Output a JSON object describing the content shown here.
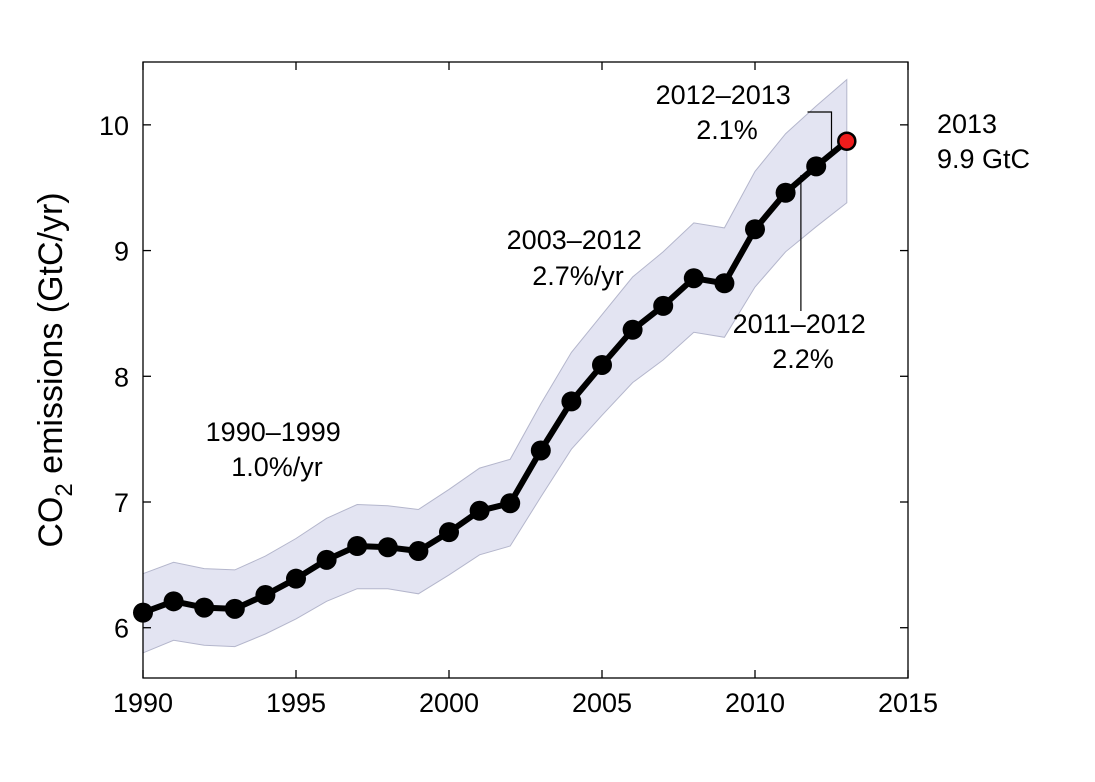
{
  "chart_data": {
    "type": "line",
    "title": "",
    "xlabel": "",
    "ylabel": {
      "pre": "CO",
      "sub": "2",
      "post": " emissions (GtC/yr)"
    },
    "xlim": [
      1990,
      2015
    ],
    "ylim": [
      5.6,
      10.5
    ],
    "xticks": [
      1990,
      1995,
      2000,
      2005,
      2010,
      2015
    ],
    "yticks": [
      6,
      7,
      8,
      9,
      10
    ],
    "grid": false,
    "series": [
      {
        "x": [
          1990,
          1991,
          1992,
          1993,
          1994,
          1995,
          1996,
          1997,
          1998,
          1999,
          2000,
          2001,
          2002,
          2003,
          2004,
          2005,
          2006,
          2007,
          2008,
          2009,
          2010,
          2011,
          2012
        ],
        "y": [
          6.12,
          6.21,
          6.16,
          6.15,
          6.26,
          6.39,
          6.54,
          6.65,
          6.64,
          6.61,
          6.76,
          6.93,
          6.99,
          7.41,
          7.8,
          8.09,
          8.37,
          8.56,
          8.78,
          8.74,
          9.17,
          9.46,
          9.67
        ],
        "lower": [
          5.8,
          5.9,
          5.86,
          5.85,
          5.95,
          6.07,
          6.21,
          6.31,
          6.31,
          6.27,
          6.42,
          6.58,
          6.65,
          7.04,
          7.42,
          7.69,
          7.95,
          8.13,
          8.35,
          8.31,
          8.71,
          8.99,
          9.19
        ],
        "upper": [
          6.43,
          6.52,
          6.47,
          6.46,
          6.57,
          6.71,
          6.87,
          6.98,
          6.97,
          6.94,
          7.1,
          7.27,
          7.34,
          7.78,
          8.19,
          8.49,
          8.79,
          8.99,
          9.22,
          9.18,
          9.63,
          9.93,
          10.15
        ],
        "color": "#000000",
        "band_color": "#e3e4f2"
      }
    ],
    "projection": {
      "x": 2013,
      "y": 9.87,
      "lower": 9.38,
      "upper": 10.36,
      "color": "#ee1c1c"
    },
    "annotations": [
      {
        "id": "period-1990-1999",
        "lines": [
          "1990–1999",
          "1.0%/yr"
        ]
      },
      {
        "id": "period-2003-2012",
        "lines": [
          "2003–2012",
          "2.7%/yr"
        ]
      },
      {
        "id": "period-2011-2012",
        "lines": [
          "2011–2012",
          "2.2%"
        ]
      },
      {
        "id": "period-2012-2013",
        "lines": [
          "2012–2013",
          "2.1%"
        ]
      },
      {
        "id": "value-2013",
        "lines": [
          "2013",
          "9.9 GtC"
        ]
      }
    ]
  }
}
